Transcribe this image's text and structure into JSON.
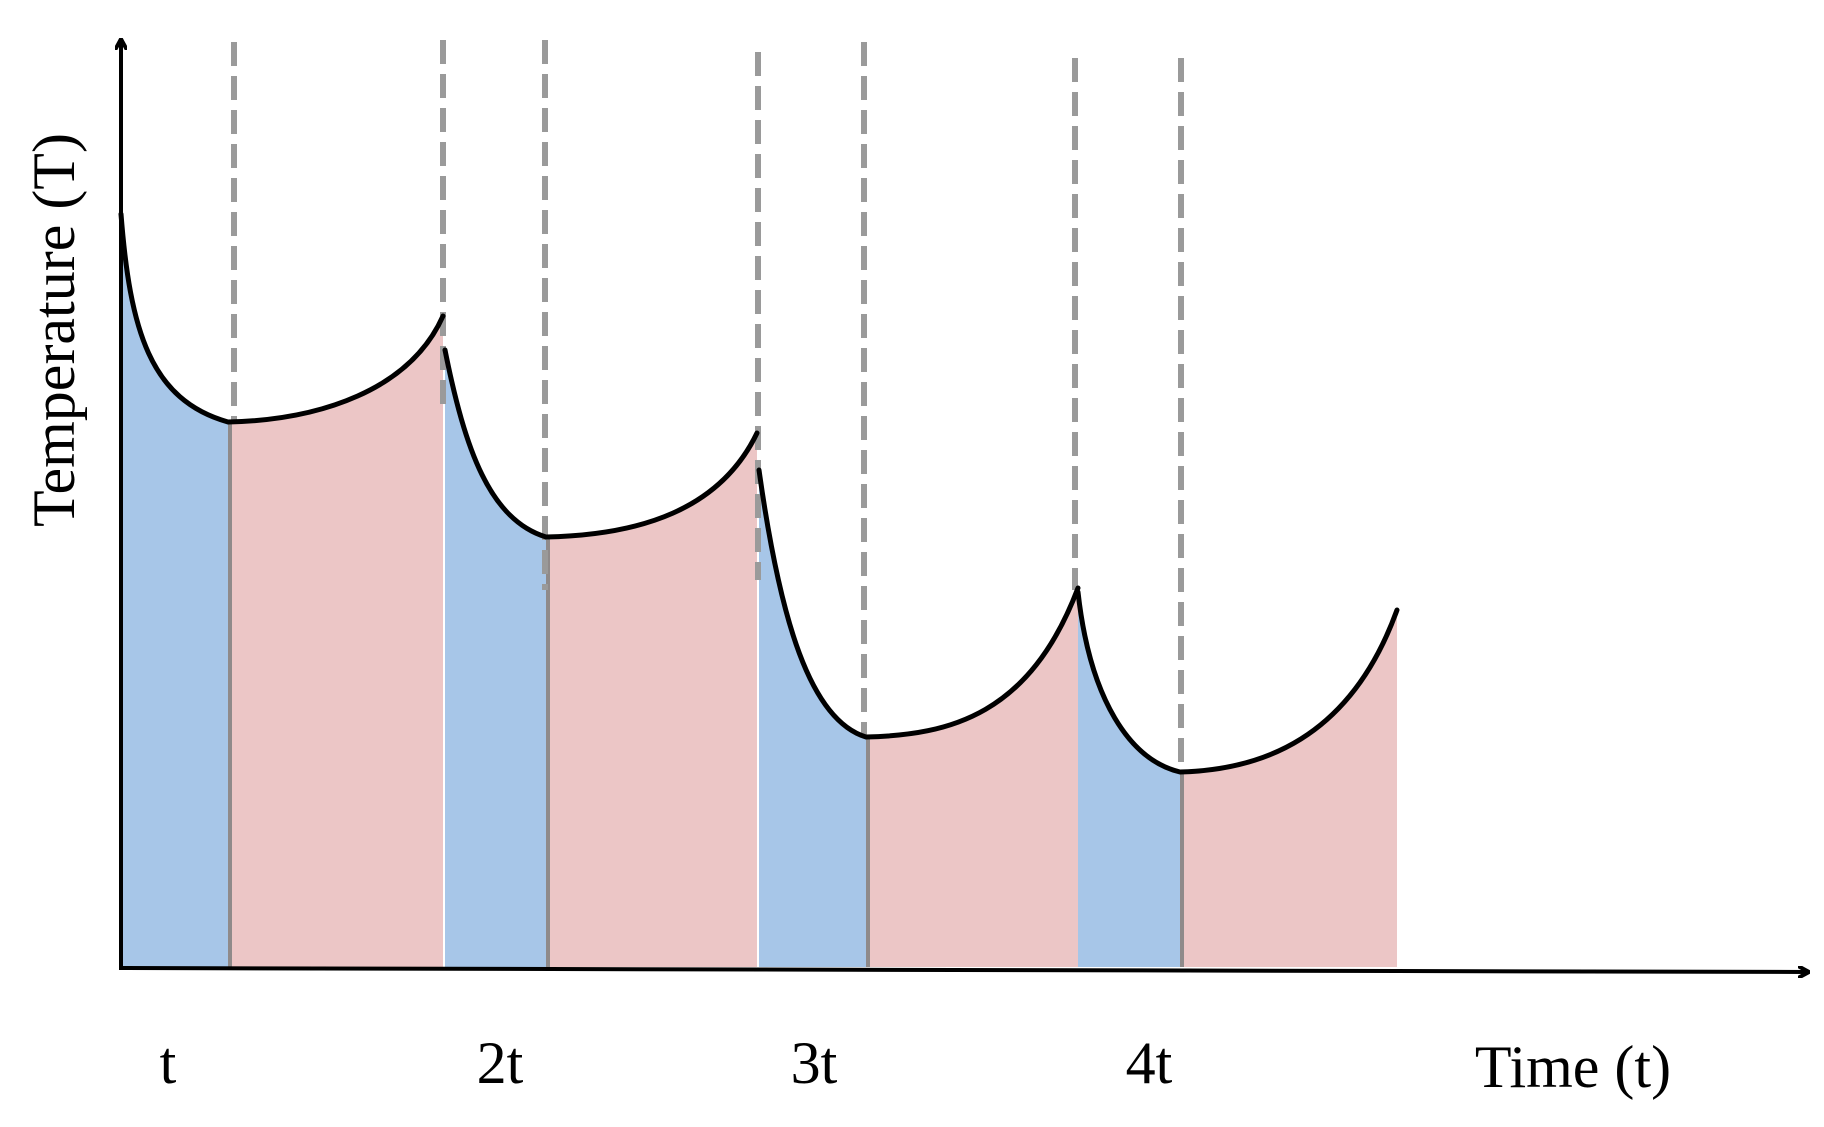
{
  "diagram": {
    "y_axis_title": "Temperature (T)",
    "x_axis_title": "Time (t)",
    "tick_labels": [
      "t",
      "2t",
      "3t",
      "4t"
    ]
  },
  "colors": {
    "cooling_fill": "#a7c6e8",
    "heating_fill": "#ecc6c6",
    "curve": "#000000",
    "dashed_line": "#9a9a9a",
    "axis": "#000000"
  }
}
